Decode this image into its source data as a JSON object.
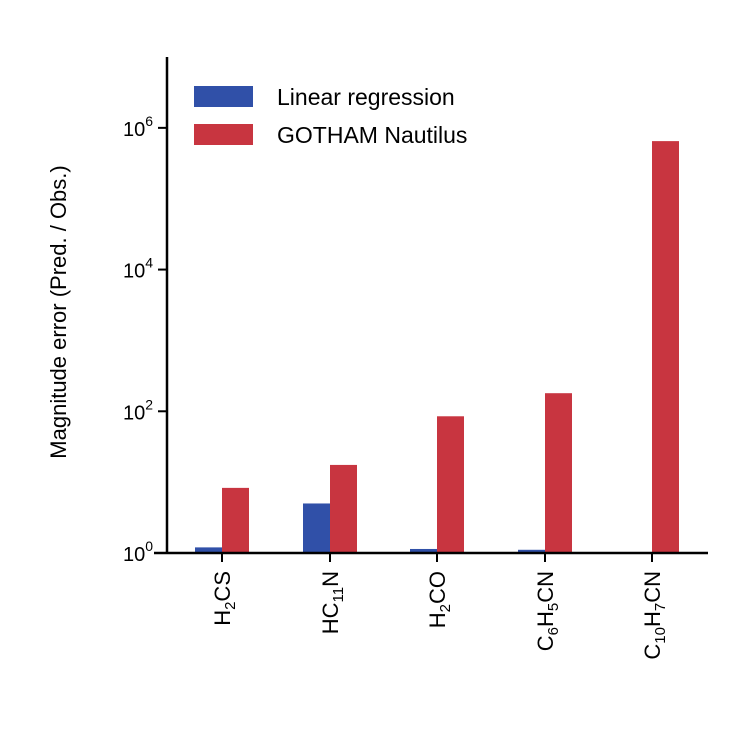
{
  "chart_data": {
    "type": "bar",
    "title": "",
    "xlabel": "",
    "ylabel": "Magnitude error (Pred. / Obs.)",
    "yscale": "log",
    "ylim": [
      1,
      10000000
    ],
    "yticks": [
      {
        "base": "10",
        "exp": "0",
        "value": 1
      },
      {
        "base": "10",
        "exp": "2",
        "value": 100
      },
      {
        "base": "10",
        "exp": "4",
        "value": 10000
      },
      {
        "base": "10",
        "exp": "6",
        "value": 1000000
      }
    ],
    "categories": [
      {
        "id": "H2CS",
        "parts": [
          {
            "t": "H",
            "sub": false
          },
          {
            "t": "2",
            "sub": true
          },
          {
            "t": "CS",
            "sub": false
          }
        ]
      },
      {
        "id": "HC11N",
        "parts": [
          {
            "t": "HC",
            "sub": false
          },
          {
            "t": "11",
            "sub": true
          },
          {
            "t": "N",
            "sub": false
          }
        ]
      },
      {
        "id": "H2CO",
        "parts": [
          {
            "t": "H",
            "sub": false
          },
          {
            "t": "2",
            "sub": true
          },
          {
            "t": "CO",
            "sub": false
          }
        ]
      },
      {
        "id": "C6H5CN",
        "parts": [
          {
            "t": "C",
            "sub": false
          },
          {
            "t": "6",
            "sub": true
          },
          {
            "t": "H",
            "sub": false
          },
          {
            "t": "5",
            "sub": true
          },
          {
            "t": "CN",
            "sub": false
          }
        ]
      },
      {
        "id": "C10H7CN",
        "parts": [
          {
            "t": "C",
            "sub": false
          },
          {
            "t": "10",
            "sub": true
          },
          {
            "t": "H",
            "sub": false
          },
          {
            "t": "7",
            "sub": true
          },
          {
            "t": "CN",
            "sub": false
          }
        ]
      }
    ],
    "series": [
      {
        "name": "Linear regression",
        "color": "#3050a8",
        "values": [
          1.2,
          5.0,
          1.14,
          1.11,
          null
        ]
      },
      {
        "name": "GOTHAM Nautilus",
        "color": "#c83540",
        "values": [
          8.3,
          17.5,
          85,
          180,
          650000
        ]
      }
    ],
    "legend_position": "top-left",
    "grid": false
  }
}
